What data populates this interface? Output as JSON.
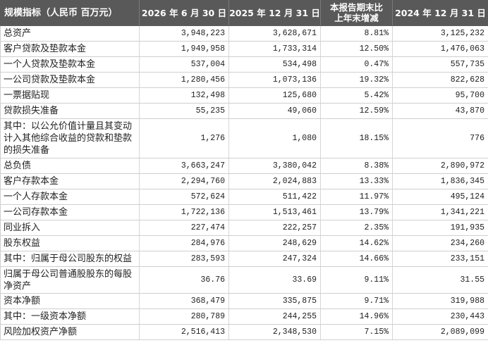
{
  "theme": {
    "header_bg": "#595959",
    "header_text": "#ffffff",
    "body_text": "#222222",
    "grid_line": "#cfcfcf"
  },
  "table": {
    "headers": [
      "规模指标（人民币 百万元）",
      "2026 年 6 月 30 日",
      "2025 年 12 月 31 日",
      "本报告期末比上年末增减",
      "2024 年 12 月 31 日"
    ],
    "rows": [
      [
        "总资产",
        "3,948,223",
        "3,628,671",
        "8.81%",
        "3,125,232"
      ],
      [
        "客户贷款及垫款本金",
        "1,949,958",
        "1,733,314",
        "12.50%",
        "1,476,063"
      ],
      [
        "一个人贷款及垫款本金",
        "537,004",
        "534,498",
        "0.47%",
        "557,735"
      ],
      [
        "一公司贷款及垫款本金",
        "1,280,456",
        "1,073,136",
        "19.32%",
        "822,628"
      ],
      [
        "一票据贴现",
        "132,498",
        "125,680",
        "5.42%",
        "95,700"
      ],
      [
        "贷款损失准备",
        "55,235",
        "49,060",
        "12.59%",
        "43,870"
      ],
      [
        "其中：以公允价值计量且其变动计入其他综合收益的贷款和垫款的损失准备",
        "1,276",
        "1,080",
        "18.15%",
        "776"
      ],
      [
        "总负债",
        "3,663,247",
        "3,380,042",
        "8.38%",
        "2,890,972"
      ],
      [
        "客户存款本金",
        "2,294,760",
        "2,024,883",
        "13.33%",
        "1,836,345"
      ],
      [
        "一个人存款本金",
        "572,624",
        "511,422",
        "11.97%",
        "495,124"
      ],
      [
        "一公司存款本金",
        "1,722,136",
        "1,513,461",
        "13.79%",
        "1,341,221"
      ],
      [
        "同业拆入",
        "227,474",
        "222,257",
        "2.35%",
        "191,935"
      ],
      [
        "股东权益",
        "284,976",
        "248,629",
        "14.62%",
        "234,260"
      ],
      [
        "其中：归属于母公司股东的权益",
        "283,593",
        "247,324",
        "14.66%",
        "233,151"
      ],
      [
        "归属于母公司普通股股东的每股净资产",
        "36.76",
        "33.69",
        "9.11%",
        "31.55"
      ],
      [
        "资本净额",
        "368,479",
        "335,875",
        "9.71%",
        "319,988"
      ],
      [
        "其中：一级资本净额",
        "280,789",
        "244,255",
        "14.96%",
        "230,443"
      ],
      [
        "风险加权资产净额",
        "2,516,413",
        "2,348,530",
        "7.15%",
        "2,089,099"
      ]
    ]
  }
}
